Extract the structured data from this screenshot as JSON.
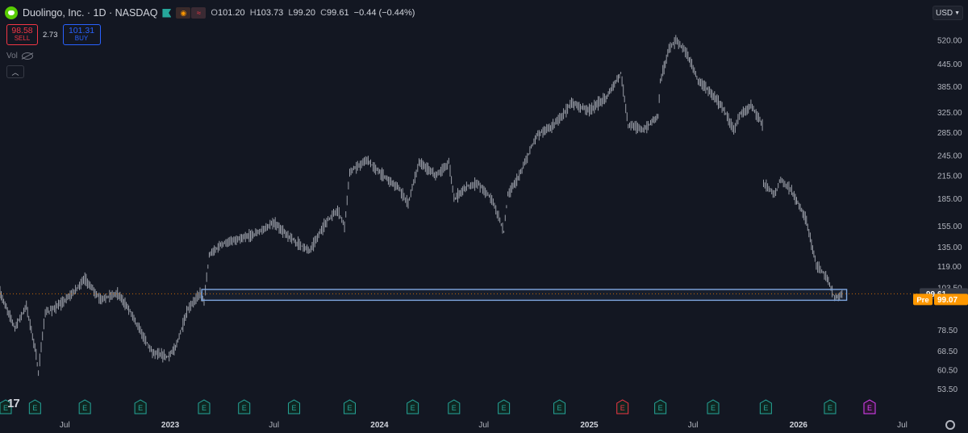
{
  "header": {
    "symbol_title": "Duolingo, Inc. · 1D · NASDAQ",
    "badge_a": "◉",
    "badge_b": "≈",
    "ohlc": {
      "o_label": "O",
      "o": "101.20",
      "h_label": "H",
      "h": "103.73",
      "l_label": "L",
      "l": "99.20",
      "c_label": "C",
      "c": "99.61",
      "change": "−0.44 (−0.44%)"
    }
  },
  "trade": {
    "sell_price": "98.58",
    "sell_label": "SELL",
    "spread": "2.73",
    "buy_price": "101.31",
    "buy_label": "BUY"
  },
  "vol_label": "Vol",
  "collapse_icon": "chevron-up-icon",
  "currency": "USD",
  "brand_mark": "17",
  "colors": {
    "background": "#131722",
    "price_line": "#b2b5be",
    "highlight_box": "#7fa7e0",
    "earnings": "#26a69a",
    "earnings_miss": "#f23645",
    "earnings_future": "#e040fb",
    "pre_market": "#ff9800",
    "last_price_bg": "#363a45"
  },
  "chart_data": {
    "type": "line",
    "y_scale": "log",
    "ylim": [
      52.0,
      560.0
    ],
    "y_ticks": [
      520,
      445,
      385,
      325,
      285,
      245,
      215,
      185,
      155,
      135,
      119,
      103.5,
      78.5,
      68.5,
      60.5,
      53.5
    ],
    "y_tick_labels": [
      "520.00",
      "445.00",
      "385.00",
      "325.00",
      "285.00",
      "245.00",
      "215.00",
      "185.00",
      "155.00",
      "135.00",
      "119.00",
      "103.50",
      "78.50",
      "68.50",
      "60.50",
      "53.50"
    ],
    "x_range": [
      "2022-03-10",
      "2026-07-20"
    ],
    "x_ticks": [
      {
        "date": "2022-07-01",
        "label": "Jul"
      },
      {
        "date": "2023-01-01",
        "label": "2023"
      },
      {
        "date": "2023-07-01",
        "label": "Jul"
      },
      {
        "date": "2024-01-01",
        "label": "2024"
      },
      {
        "date": "2024-07-01",
        "label": "Jul"
      },
      {
        "date": "2025-01-01",
        "label": "2025"
      },
      {
        "date": "2025-07-01",
        "label": "Jul"
      },
      {
        "date": "2026-01-01",
        "label": "2026"
      },
      {
        "date": "2026-07-01",
        "label": "Jul"
      }
    ],
    "series": [
      {
        "values": [
          {
            "x": "2022-03-10",
            "y": 100
          },
          {
            "x": "2022-04-05",
            "y": 80
          },
          {
            "x": "2022-04-25",
            "y": 92
          },
          {
            "x": "2022-05-10",
            "y": 70
          },
          {
            "x": "2022-05-16",
            "y": 60
          },
          {
            "x": "2022-05-28",
            "y": 88
          },
          {
            "x": "2022-06-20",
            "y": 92
          },
          {
            "x": "2022-07-15",
            "y": 100
          },
          {
            "x": "2022-08-05",
            "y": 110
          },
          {
            "x": "2022-09-01",
            "y": 96
          },
          {
            "x": "2022-10-01",
            "y": 100
          },
          {
            "x": "2022-10-25",
            "y": 88
          },
          {
            "x": "2022-11-10",
            "y": 78
          },
          {
            "x": "2022-12-01",
            "y": 68
          },
          {
            "x": "2022-12-28",
            "y": 66
          },
          {
            "x": "2023-01-10",
            "y": 70
          },
          {
            "x": "2023-02-01",
            "y": 90
          },
          {
            "x": "2023-02-22",
            "y": 100
          },
          {
            "x": "2023-03-01",
            "y": 95
          },
          {
            "x": "2023-03-10",
            "y": 128
          },
          {
            "x": "2023-04-01",
            "y": 138
          },
          {
            "x": "2023-05-01",
            "y": 142
          },
          {
            "x": "2023-06-01",
            "y": 148
          },
          {
            "x": "2023-07-01",
            "y": 158
          },
          {
            "x": "2023-08-01",
            "y": 142
          },
          {
            "x": "2023-09-01",
            "y": 132
          },
          {
            "x": "2023-10-01",
            "y": 160
          },
          {
            "x": "2023-10-20",
            "y": 172
          },
          {
            "x": "2023-11-01",
            "y": 155
          },
          {
            "x": "2023-11-10",
            "y": 220
          },
          {
            "x": "2023-12-10",
            "y": 238
          },
          {
            "x": "2024-01-01",
            "y": 220
          },
          {
            "x": "2024-02-01",
            "y": 200
          },
          {
            "x": "2024-02-20",
            "y": 180
          },
          {
            "x": "2024-03-10",
            "y": 235
          },
          {
            "x": "2024-04-10",
            "y": 215
          },
          {
            "x": "2024-05-01",
            "y": 235
          },
          {
            "x": "2024-05-10",
            "y": 185
          },
          {
            "x": "2024-06-01",
            "y": 200
          },
          {
            "x": "2024-06-20",
            "y": 205
          },
          {
            "x": "2024-07-15",
            "y": 185
          },
          {
            "x": "2024-08-05",
            "y": 150
          },
          {
            "x": "2024-08-12",
            "y": 190
          },
          {
            "x": "2024-09-01",
            "y": 215
          },
          {
            "x": "2024-10-01",
            "y": 280
          },
          {
            "x": "2024-11-01",
            "y": 300
          },
          {
            "x": "2024-12-01",
            "y": 345
          },
          {
            "x": "2025-01-01",
            "y": 330
          },
          {
            "x": "2025-02-01",
            "y": 360
          },
          {
            "x": "2025-02-25",
            "y": 420
          },
          {
            "x": "2025-03-10",
            "y": 300
          },
          {
            "x": "2025-04-07",
            "y": 290
          },
          {
            "x": "2025-05-01",
            "y": 320
          },
          {
            "x": "2025-05-05",
            "y": 400
          },
          {
            "x": "2025-05-20",
            "y": 490
          },
          {
            "x": "2025-06-01",
            "y": 520
          },
          {
            "x": "2025-06-20",
            "y": 480
          },
          {
            "x": "2025-07-10",
            "y": 400
          },
          {
            "x": "2025-08-01",
            "y": 370
          },
          {
            "x": "2025-08-25",
            "y": 330
          },
          {
            "x": "2025-09-10",
            "y": 290
          },
          {
            "x": "2025-09-20",
            "y": 320
          },
          {
            "x": "2025-10-10",
            "y": 340
          },
          {
            "x": "2025-10-30",
            "y": 300
          },
          {
            "x": "2025-11-01",
            "y": 205
          },
          {
            "x": "2025-11-20",
            "y": 190
          },
          {
            "x": "2025-12-01",
            "y": 210
          },
          {
            "x": "2025-12-20",
            "y": 195
          },
          {
            "x": "2026-01-15",
            "y": 160
          },
          {
            "x": "2026-02-01",
            "y": 120
          },
          {
            "x": "2026-02-20",
            "y": 110
          },
          {
            "x": "2026-03-05",
            "y": 97
          },
          {
            "x": "2026-03-20",
            "y": 99.61
          }
        ]
      }
    ],
    "highlight_zone": {
      "x_start": "2023-02-25",
      "x_end": "2026-03-26",
      "y_low": 95.5,
      "y_high": 102.5
    },
    "current_price": {
      "value": 99.61,
      "label": "99.61"
    },
    "pre_market": {
      "label": "Pre",
      "value": 99.07,
      "value_label": "99.07"
    },
    "earnings_markers": [
      {
        "date": "2022-03-05",
        "label": "E",
        "kind": "reported"
      },
      {
        "date": "2022-05-10",
        "label": "E",
        "kind": "reported"
      },
      {
        "date": "2022-08-05",
        "label": "E",
        "kind": "reported"
      },
      {
        "date": "2022-11-10",
        "label": "E",
        "kind": "reported"
      },
      {
        "date": "2023-03-01",
        "label": "E",
        "kind": "reported"
      },
      {
        "date": "2023-05-10",
        "label": "E",
        "kind": "reported"
      },
      {
        "date": "2023-08-05",
        "label": "E",
        "kind": "reported"
      },
      {
        "date": "2023-11-10",
        "label": "E",
        "kind": "reported"
      },
      {
        "date": "2024-02-28",
        "label": "E",
        "kind": "reported"
      },
      {
        "date": "2024-05-10",
        "label": "E",
        "kind": "reported"
      },
      {
        "date": "2024-08-05",
        "label": "E",
        "kind": "reported"
      },
      {
        "date": "2024-11-10",
        "label": "E",
        "kind": "reported"
      },
      {
        "date": "2025-02-28",
        "label": "E",
        "kind": "miss"
      },
      {
        "date": "2025-05-05",
        "label": "E",
        "kind": "reported"
      },
      {
        "date": "2025-08-05",
        "label": "E",
        "kind": "reported"
      },
      {
        "date": "2025-11-05",
        "label": "E",
        "kind": "reported"
      },
      {
        "date": "2026-02-25",
        "label": "E",
        "kind": "reported"
      },
      {
        "date": "2026-05-05",
        "label": "E",
        "kind": "upcoming"
      }
    ],
    "grid": false,
    "legend": "none"
  }
}
